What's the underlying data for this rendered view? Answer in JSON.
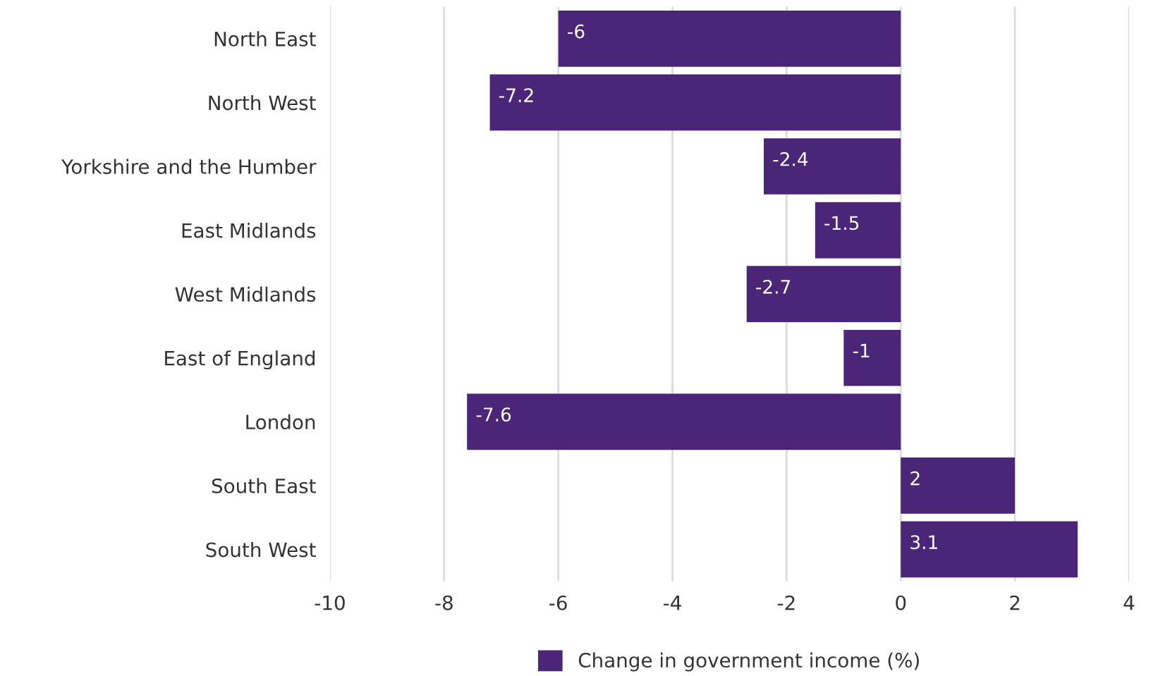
{
  "chart_data": {
    "type": "bar",
    "orientation": "horizontal",
    "categories": [
      "North East",
      "North West",
      "Yorkshire and the Humber",
      "East Midlands",
      "West Midlands",
      "East of England",
      "London",
      "South East",
      "South West"
    ],
    "series": [
      {
        "name": "Change in government income (%)",
        "color": "#4b2678",
        "values": [
          -6,
          -7.2,
          -2.4,
          -1.5,
          -2.7,
          -1,
          -7.6,
          2,
          3.1
        ]
      }
    ],
    "xlim": [
      -10,
      4
    ],
    "xticks": [
      -10,
      -8,
      -6,
      -4,
      -2,
      0,
      2,
      4
    ],
    "grid": "x",
    "legend": "bottom",
    "data_labels": true
  }
}
